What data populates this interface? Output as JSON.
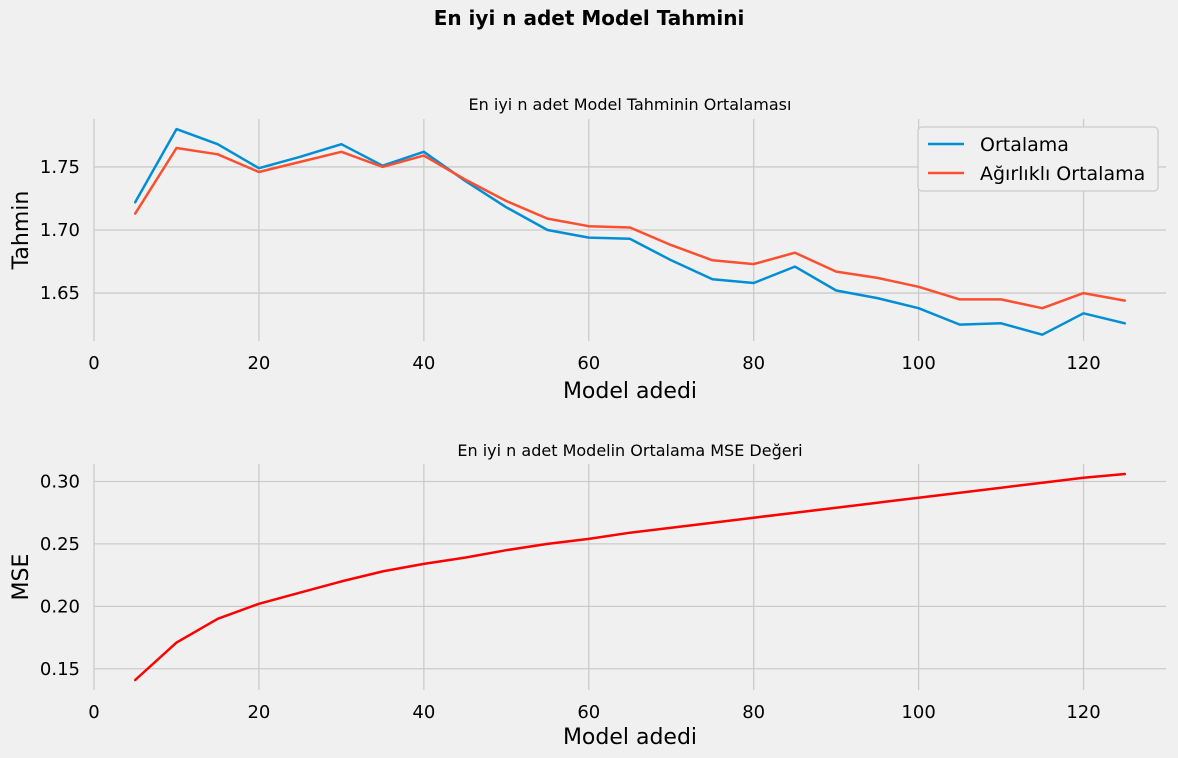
{
  "figure_title": "En iyi n adet Model Tahmini",
  "chart_data": [
    {
      "type": "line",
      "title": "En iyi n adet Model Tahminin Ortalaması",
      "xlabel": "Model adedi",
      "ylabel": "Tahmin",
      "xlim": [
        0,
        130
      ],
      "ylim": [
        1.612,
        1.788
      ],
      "xticks": [
        0,
        20,
        40,
        60,
        80,
        100,
        120
      ],
      "yticks": [
        1.65,
        1.7,
        1.75
      ],
      "grid": true,
      "legend_position": "top-right",
      "x": [
        5,
        10,
        15,
        20,
        25,
        30,
        35,
        40,
        45,
        50,
        55,
        60,
        65,
        70,
        75,
        80,
        85,
        90,
        95,
        100,
        105,
        110,
        115,
        120,
        125
      ],
      "series": [
        {
          "name": "Ortalama",
          "color": "#008fd5",
          "values": [
            1.722,
            1.78,
            1.768,
            1.749,
            1.758,
            1.768,
            1.751,
            1.762,
            1.739,
            1.718,
            1.7,
            1.694,
            1.693,
            1.676,
            1.661,
            1.658,
            1.671,
            1.652,
            1.646,
            1.638,
            1.625,
            1.626,
            1.617,
            1.634,
            1.626
          ]
        },
        {
          "name": "Ağırlıklı Ortalama",
          "color": "#fc4f30",
          "values": [
            1.713,
            1.765,
            1.76,
            1.746,
            1.754,
            1.762,
            1.75,
            1.759,
            1.74,
            1.723,
            1.709,
            1.703,
            1.702,
            1.688,
            1.676,
            1.673,
            1.682,
            1.667,
            1.662,
            1.655,
            1.645,
            1.645,
            1.638,
            1.65,
            1.644
          ]
        }
      ]
    },
    {
      "type": "line",
      "title": "En iyi n adet Modelin Ortalama MSE Değeri",
      "xlabel": "Model adedi",
      "ylabel": "MSE",
      "xlim": [
        0,
        130
      ],
      "ylim": [
        0.133,
        0.314
      ],
      "xticks": [
        0,
        20,
        40,
        60,
        80,
        100,
        120
      ],
      "yticks": [
        0.15,
        0.2,
        0.25,
        0.3
      ],
      "grid": true,
      "x": [
        5,
        10,
        15,
        20,
        25,
        30,
        35,
        40,
        45,
        50,
        55,
        60,
        65,
        70,
        75,
        80,
        85,
        90,
        95,
        100,
        105,
        110,
        115,
        120,
        125
      ],
      "series": [
        {
          "name": "MSE",
          "color": "#ff0000",
          "values": [
            0.141,
            0.171,
            0.19,
            0.202,
            0.211,
            0.22,
            0.228,
            0.234,
            0.239,
            0.245,
            0.25,
            0.254,
            0.259,
            0.263,
            0.267,
            0.271,
            0.275,
            0.279,
            0.283,
            0.287,
            0.291,
            0.295,
            0.299,
            0.303,
            0.306
          ]
        }
      ]
    }
  ]
}
